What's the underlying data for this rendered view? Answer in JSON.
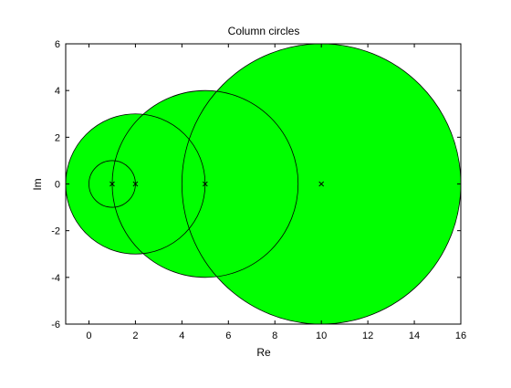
{
  "chart_data": {
    "type": "scatter",
    "title": "Column circles",
    "xlabel": "Re",
    "ylabel": "Im",
    "xlim": [
      -1,
      16
    ],
    "ylim": [
      -6,
      6
    ],
    "xticks": [
      0,
      2,
      4,
      6,
      8,
      10,
      12,
      14,
      16
    ],
    "yticks": [
      -6,
      -4,
      -2,
      0,
      2,
      4,
      6
    ],
    "grid": false,
    "fill_color": "#00ff00",
    "edge_color": "#000000",
    "marker": "x",
    "circles": [
      {
        "center": [
          10,
          0
        ],
        "radius": 6
      },
      {
        "center": [
          5,
          0
        ],
        "radius": 4
      },
      {
        "center": [
          2,
          0
        ],
        "radius": 3
      },
      {
        "center": [
          1,
          0
        ],
        "radius": 1
      }
    ]
  }
}
